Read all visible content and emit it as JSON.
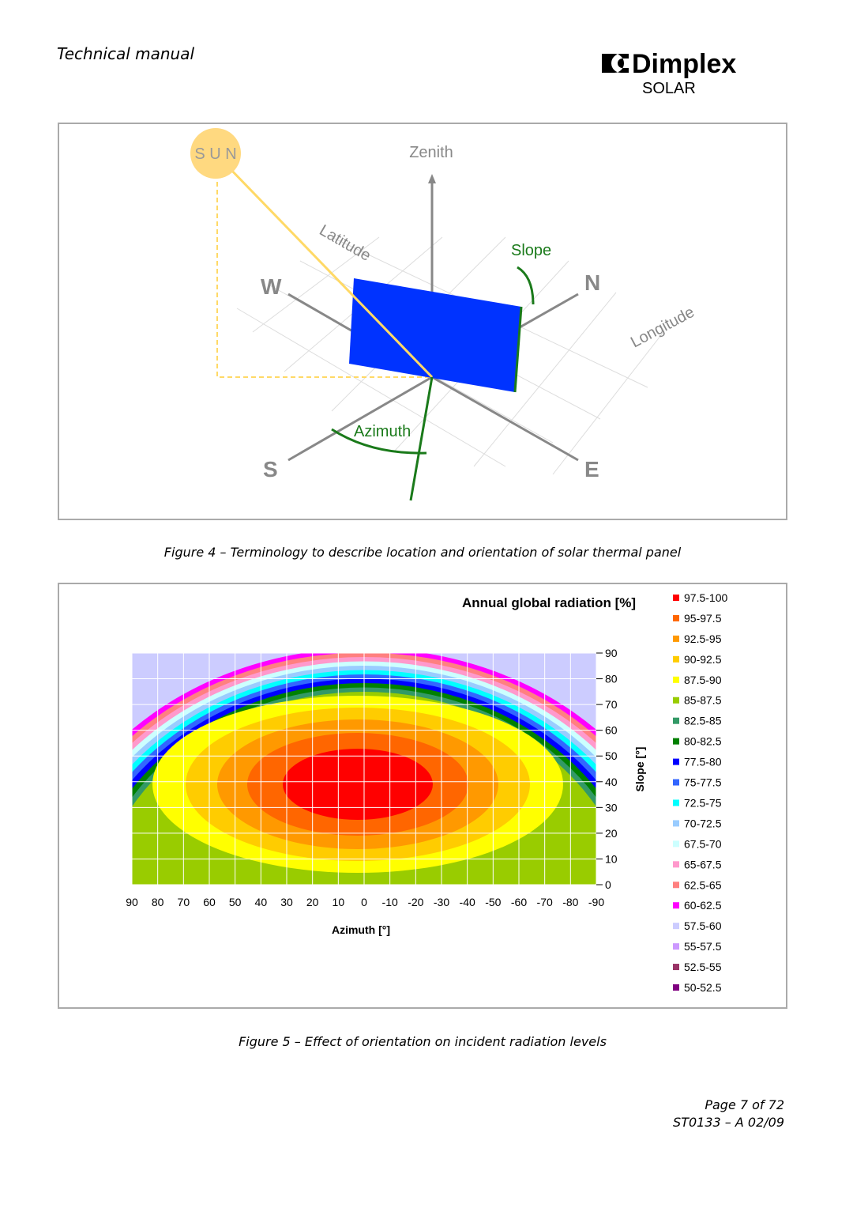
{
  "header": {
    "title": "Technical manual",
    "brand": "Dimplex",
    "subbrand": "SOLAR"
  },
  "figure4": {
    "labels": {
      "sun": "S U N",
      "zenith": "Zenith",
      "latitude": "Latitude",
      "slope": "Slope",
      "west": "W",
      "north": "N",
      "longitude": "Longitude",
      "azimuth": "Azimuth",
      "south": "S",
      "east": "E"
    },
    "caption": "Figure 4 – Terminology to describe location and orientation of solar thermal panel"
  },
  "figure5": {
    "title": "Annual global radiation [%]",
    "legend": [
      {
        "label": "97.5-100",
        "color": "#ff0000"
      },
      {
        "label": "95-97.5",
        "color": "#ff6600"
      },
      {
        "label": "92.5-95",
        "color": "#ff9900"
      },
      {
        "label": "90-92.5",
        "color": "#ffcc00"
      },
      {
        "label": "87.5-90",
        "color": "#ffff00"
      },
      {
        "label": "85-87.5",
        "color": "#99cc00"
      },
      {
        "label": "82.5-85",
        "color": "#339966"
      },
      {
        "label": "80-82.5",
        "color": "#008000"
      },
      {
        "label": "77.5-80",
        "color": "#0000ff"
      },
      {
        "label": "75-77.5",
        "color": "#3366ff"
      },
      {
        "label": "72.5-75",
        "color": "#00ffff"
      },
      {
        "label": "70-72.5",
        "color": "#99ccff"
      },
      {
        "label": "67.5-70",
        "color": "#ccffff"
      },
      {
        "label": "65-67.5",
        "color": "#ff99cc"
      },
      {
        "label": "62.5-65",
        "color": "#ff8080"
      },
      {
        "label": "60-62.5",
        "color": "#ff00ff"
      },
      {
        "label": "57.5-60",
        "color": "#ccccff"
      },
      {
        "label": "55-57.5",
        "color": "#cc99ff"
      },
      {
        "label": "52.5-55",
        "color": "#993366"
      },
      {
        "label": "50-52.5",
        "color": "#800080"
      }
    ],
    "xticks": [
      "90",
      "80",
      "70",
      "60",
      "50",
      "40",
      "30",
      "20",
      "10",
      "0",
      "-10",
      "-20",
      "-30",
      "-40",
      "-50",
      "-60",
      "-70",
      "-80",
      "-90"
    ],
    "yticks": [
      "90",
      "80",
      "70",
      "60",
      "50",
      "40",
      "30",
      "20",
      "10",
      "0"
    ],
    "xlabel": "Azimuth [°]",
    "ylabel": "Slope [°]",
    "caption": "Figure 5 – Effect of orientation on incident radiation levels"
  },
  "footer": {
    "page": "Page 7 of 72",
    "doc": "ST0133 – A 02/09"
  }
}
